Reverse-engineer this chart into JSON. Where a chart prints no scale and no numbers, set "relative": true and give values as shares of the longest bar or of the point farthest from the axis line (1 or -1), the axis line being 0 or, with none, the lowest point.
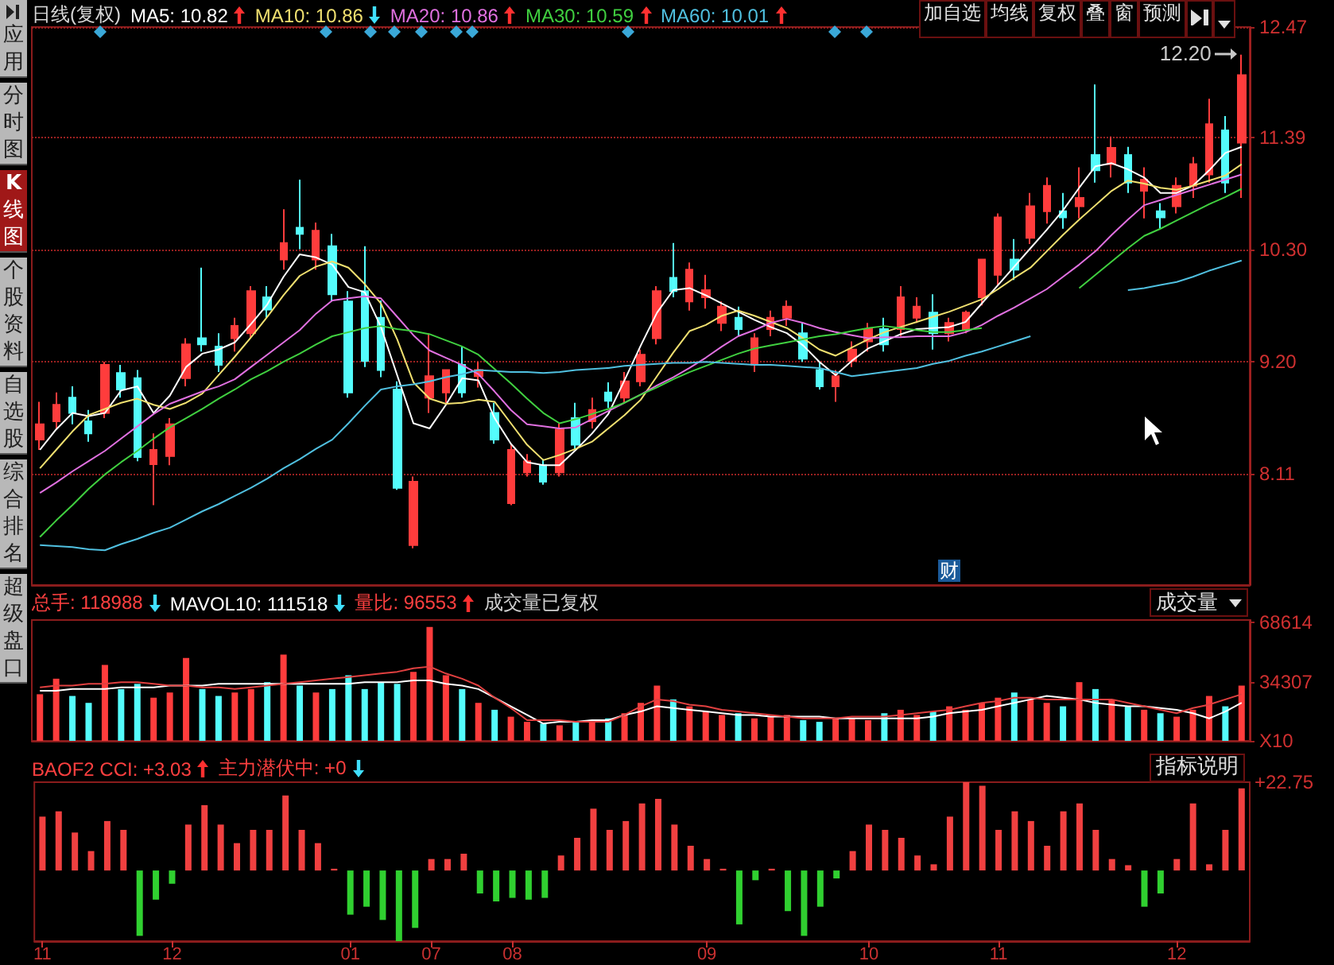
{
  "chart_data": [
    {
      "type": "candlestick",
      "title": "日线(复权)",
      "legend": "top left",
      "grid": "y",
      "tick_labels": "y",
      "ylim": [
        7.02,
        12.47
      ],
      "yticks": [
        8.11,
        {
          "value": 9.2,
          "label": "9.20"
        },
        {
          "value": 10.3,
          "label": "10.30"
        },
        11.39,
        12.47
      ],
      "categories": [
        "11",
        null,
        null,
        null,
        null,
        null,
        null,
        null,
        "12",
        null,
        null,
        null,
        null,
        null,
        null,
        null,
        null,
        null,
        null,
        "01",
        null,
        null,
        null,
        null,
        "07",
        null,
        null,
        null,
        null,
        "08",
        null,
        null,
        null,
        null,
        null,
        null,
        null,
        null,
        null,
        null,
        null,
        "09",
        null,
        null,
        null,
        null,
        null,
        null,
        null,
        null,
        null,
        "10",
        null,
        null,
        null,
        null,
        null,
        null,
        null,
        "11",
        null,
        null,
        null,
        null,
        null,
        null,
        null,
        null,
        null,
        null,
        "12",
        null,
        null,
        null,
        null
      ],
      "annotations": [
        "12.20",
        "财",
        "加自选",
        "均线",
        "复权",
        "叠",
        "窗",
        "预测",
        "应用",
        "分时图",
        "K线图",
        "个股资料",
        "自选股",
        "综合排名",
        "超级盘口"
      ],
      "series": [
        {
          "type": "candlestick",
          "ohlc": [
            [
              8.44,
              8.81,
              8.34,
              8.59
            ],
            [
              8.62,
              8.9,
              8.54,
              8.78
            ],
            [
              8.85,
              8.96,
              8.59,
              8.7
            ],
            [
              8.62,
              8.73,
              8.42,
              8.5
            ],
            [
              8.7,
              9.2,
              8.65,
              9.17
            ],
            [
              9.09,
              9.17,
              8.85,
              8.93
            ],
            [
              9.04,
              9.12,
              8.23,
              8.27
            ],
            [
              8.2,
              8.5,
              7.8,
              8.34
            ],
            [
              8.28,
              8.65,
              8.19,
              8.59
            ],
            [
              9.04,
              9.43,
              8.96,
              9.37
            ],
            [
              9.43,
              10.12,
              9.3,
              9.37
            ],
            [
              9.35,
              9.48,
              9.1,
              9.17
            ],
            [
              9.43,
              9.63,
              9.3,
              9.55
            ],
            [
              9.48,
              9.94,
              9.43,
              9.89
            ],
            [
              9.83,
              9.94,
              9.63,
              9.71
            ],
            [
              10.2,
              10.69,
              10.1,
              10.36
            ],
            [
              10.51,
              10.98,
              10.3,
              10.45
            ],
            [
              10.2,
              10.56,
              10.1,
              10.48
            ],
            [
              10.33,
              10.45,
              9.79,
              9.86
            ],
            [
              9.79,
              9.89,
              8.85,
              8.9
            ],
            [
              9.89,
              10.33,
              9.15,
              9.21
            ],
            [
              9.63,
              9.8,
              9.05,
              9.12
            ],
            [
              8.93,
              9.01,
              7.95,
              7.97
            ],
            [
              7.41,
              8.08,
              7.38,
              8.03
            ],
            [
              8.85,
              9.48,
              8.7,
              9.06
            ],
            [
              8.9,
              9.12,
              8.8,
              9.12
            ],
            [
              9.17,
              9.35,
              8.85,
              8.9
            ],
            [
              9.06,
              9.2,
              8.95,
              9.12
            ],
            [
              8.7,
              8.8,
              8.4,
              8.44
            ],
            [
              7.82,
              8.4,
              7.8,
              8.34
            ],
            [
              8.12,
              8.3,
              8.08,
              8.23
            ],
            [
              8.19,
              8.25,
              8.0,
              8.03
            ],
            [
              8.12,
              8.6,
              8.08,
              8.54
            ],
            [
              8.65,
              8.8,
              8.35,
              8.39
            ],
            [
              8.62,
              8.85,
              8.55,
              8.73
            ],
            [
              8.9,
              9.0,
              8.75,
              8.82
            ],
            [
              8.85,
              9.1,
              8.8,
              9.01
            ],
            [
              9.01,
              9.32,
              8.96,
              9.27
            ],
            [
              9.43,
              9.94,
              9.37,
              9.89
            ],
            [
              10.02,
              10.36,
              9.83,
              9.89
            ],
            [
              9.79,
              10.17,
              9.7,
              10.1
            ],
            [
              9.83,
              10.05,
              9.72,
              9.9
            ],
            [
              9.58,
              9.79,
              9.5,
              9.74
            ],
            [
              9.63,
              9.74,
              9.45,
              9.52
            ],
            [
              9.17,
              9.48,
              9.1,
              9.43
            ],
            [
              9.52,
              9.7,
              9.45,
              9.63
            ],
            [
              9.63,
              9.8,
              9.55,
              9.74
            ],
            [
              9.48,
              9.58,
              9.2,
              9.23
            ],
            [
              9.12,
              9.2,
              8.93,
              8.96
            ],
            [
              8.96,
              9.12,
              8.81,
              9.06
            ],
            [
              9.21,
              9.4,
              9.15,
              9.32
            ],
            [
              9.4,
              9.58,
              9.3,
              9.52
            ],
            [
              9.52,
              9.63,
              9.3,
              9.37
            ],
            [
              9.52,
              9.94,
              9.45,
              9.83
            ],
            [
              9.63,
              9.83,
              9.58,
              9.74
            ],
            [
              9.68,
              9.86,
              9.32,
              9.48
            ],
            [
              9.48,
              9.63,
              9.4,
              9.58
            ],
            [
              9.52,
              9.7,
              9.48,
              9.68
            ],
            [
              9.83,
              10.2,
              9.75,
              10.2
            ],
            [
              10.05,
              10.65,
              9.95,
              10.61
            ],
            [
              10.2,
              10.4,
              10.0,
              10.1
            ],
            [
              10.41,
              10.85,
              10.35,
              10.72
            ],
            [
              10.67,
              11.0,
              10.55,
              10.92
            ],
            [
              10.67,
              10.85,
              10.5,
              10.61
            ],
            [
              10.72,
              11.1,
              10.6,
              10.8
            ],
            [
              11.22,
              11.91,
              10.95,
              11.07
            ],
            [
              11.13,
              11.4,
              11.0,
              11.29
            ],
            [
              11.22,
              11.3,
              10.85,
              10.95
            ],
            [
              10.87,
              11.1,
              10.6,
              10.98
            ],
            [
              10.67,
              10.75,
              10.5,
              10.61
            ],
            [
              10.72,
              11.0,
              10.65,
              10.92
            ],
            [
              10.92,
              11.2,
              10.8,
              11.13
            ],
            [
              11.03,
              11.77,
              10.95,
              11.52
            ],
            [
              11.46,
              11.6,
              10.85,
              10.95
            ],
            [
              11.34,
              12.2,
              10.8,
              12.0
            ]
          ]
        },
        {
          "name": "MA5: 10.82",
          "type": "line",
          "color": "#ffffff",
          "values": [
            8.34,
            8.54,
            8.7,
            8.67,
            8.7,
            8.92,
            8.96,
            8.7,
            8.87,
            9.15,
            9.28,
            9.32,
            9.39,
            9.57,
            9.76,
            10.03,
            10.25,
            10.22,
            10.15,
            9.93,
            9.88,
            9.54,
            9.07,
            8.6,
            8.55,
            8.78,
            9.04,
            9.02,
            8.65,
            8.4,
            8.22,
            8.19,
            8.19,
            8.34,
            8.5,
            8.69,
            9.02,
            9.36,
            9.68,
            9.9,
            9.92,
            9.85,
            9.77,
            9.69,
            9.61,
            9.54,
            9.48,
            9.36,
            9.2,
            9.07,
            9.21,
            9.33,
            9.4,
            9.47,
            9.52,
            9.53,
            9.54,
            9.59,
            9.77,
            9.95,
            10.13,
            10.31,
            10.49,
            10.68,
            10.9,
            11.11,
            11.14,
            11.08,
            11.0,
            10.85,
            10.85,
            10.92,
            11.07,
            11.24,
            11.3
          ]
        },
        {
          "name": "MA10: 10.86",
          "type": "line",
          "color": "#f0e070",
          "values": [
            8.16,
            8.34,
            8.52,
            8.68,
            8.74,
            8.8,
            8.84,
            8.78,
            8.74,
            8.8,
            8.89,
            9.07,
            9.25,
            9.44,
            9.64,
            9.85,
            10.04,
            10.13,
            10.18,
            10.12,
            9.96,
            9.77,
            9.42,
            9.0,
            8.84,
            8.79,
            8.8,
            8.83,
            8.81,
            8.6,
            8.39,
            8.24,
            8.29,
            8.35,
            8.42,
            8.55,
            8.68,
            8.83,
            9.06,
            9.29,
            9.5,
            9.56,
            9.65,
            9.7,
            9.65,
            9.59,
            9.53,
            9.43,
            9.32,
            9.26,
            9.34,
            9.42,
            9.49,
            9.54,
            9.59,
            9.64,
            9.69,
            9.75,
            9.81,
            9.91,
            10.02,
            10.12,
            10.28,
            10.44,
            10.59,
            10.73,
            10.87,
            10.97,
            10.94,
            10.9,
            10.88,
            10.92,
            10.97,
            11.02,
            11.13
          ]
        },
        {
          "name": "MA20: 10.86",
          "type": "line",
          "color": "#e070e0",
          "values": [
            7.92,
            8.02,
            8.13,
            8.23,
            8.33,
            8.45,
            8.57,
            8.69,
            8.79,
            8.85,
            8.91,
            8.96,
            9.03,
            9.15,
            9.27,
            9.39,
            9.51,
            9.67,
            9.8,
            9.82,
            9.84,
            9.82,
            9.64,
            9.46,
            9.31,
            9.24,
            9.17,
            9.08,
            8.91,
            8.73,
            8.59,
            8.57,
            8.55,
            8.56,
            8.64,
            8.72,
            8.8,
            8.88,
            8.97,
            9.05,
            9.14,
            9.24,
            9.35,
            9.45,
            9.51,
            9.58,
            9.62,
            9.58,
            9.53,
            9.49,
            9.46,
            9.43,
            9.44,
            9.44,
            9.45,
            9.45,
            9.45,
            9.49,
            9.56,
            9.65,
            9.73,
            9.82,
            9.91,
            10.03,
            10.15,
            10.28,
            10.44,
            10.59,
            10.73,
            10.78,
            10.83,
            10.88,
            10.93,
            10.98,
            11.03
          ]
        },
        {
          "name": "MA30: 10.59",
          "type": "line",
          "color": "#40d040",
          "values": [
            7.49,
            7.65,
            7.8,
            7.96,
            8.1,
            8.22,
            8.33,
            8.45,
            8.56,
            8.65,
            8.74,
            8.84,
            8.93,
            9.03,
            9.11,
            9.2,
            9.28,
            9.37,
            9.45,
            9.49,
            9.53,
            9.55,
            9.52,
            9.5,
            9.47,
            9.41,
            9.35,
            9.27,
            9.13,
            8.99,
            8.84,
            8.7,
            8.6,
            8.64,
            8.69,
            8.74,
            8.8,
            8.88,
            8.95,
            9.03,
            9.1,
            9.16,
            9.22,
            9.28,
            9.33,
            9.36,
            9.39,
            9.42,
            9.45,
            9.47,
            9.5,
            9.53,
            9.55,
            9.53,
            9.51,
            9.49,
            9.49,
            9.51,
            9.53,
            null,
            null,
            null,
            null,
            null,
            9.92,
            10.05,
            10.18,
            10.31,
            10.43,
            10.5,
            10.58,
            10.66,
            10.74,
            10.81,
            10.89
          ]
        },
        {
          "name": "MA60: 10.01",
          "type": "line",
          "color": "#50c0e0",
          "values": [
            7.41,
            7.4,
            7.39,
            7.37,
            7.36,
            7.42,
            7.47,
            7.53,
            7.58,
            7.66,
            7.74,
            7.81,
            7.89,
            7.97,
            8.06,
            8.16,
            8.25,
            8.35,
            8.44,
            8.6,
            8.77,
            8.93,
            8.96,
            8.98,
            9.01,
            9.05,
            9.08,
            9.12,
            9.11,
            9.1,
            9.1,
            9.09,
            9.1,
            9.12,
            9.13,
            9.14,
            9.16,
            9.17,
            9.18,
            9.19,
            9.19,
            9.2,
            9.19,
            9.18,
            9.17,
            9.17,
            9.16,
            9.15,
            9.14,
            9.1,
            9.06,
            9.08,
            9.1,
            9.12,
            9.14,
            9.18,
            9.21,
            9.26,
            9.3,
            9.35,
            9.4,
            9.45,
            null,
            null,
            null,
            null,
            null,
            9.9,
            9.92,
            9.95,
            9.98,
            10.03,
            10.09,
            10.14,
            10.19
          ]
        }
      ]
    },
    {
      "type": "bar",
      "legend": "top left",
      "tick_labels": "y",
      "ylim": [
        0,
        70000
      ],
      "yticks": [
        {
          "value": 0,
          "label": "X10"
        },
        34307,
        68614
      ],
      "categories": [
        "11",
        null,
        null,
        null,
        null,
        null,
        null,
        null,
        "12",
        null,
        null,
        null,
        null,
        null,
        null,
        null,
        null,
        null,
        null,
        "01",
        null,
        null,
        null,
        null,
        "07",
        null,
        null,
        null,
        null,
        "08",
        null,
        null,
        null,
        null,
        null,
        null,
        null,
        null,
        null,
        null,
        null,
        "09",
        null,
        null,
        null,
        null,
        null,
        null,
        null,
        null,
        null,
        "10",
        null,
        null,
        null,
        null,
        null,
        null,
        null,
        "11",
        null,
        null,
        null,
        null,
        null,
        null,
        null,
        null,
        null,
        null,
        "12",
        null,
        null,
        null,
        null
      ],
      "annotations": [
        "总手: 118988",
        "量比: 96553",
        "成交量已复权",
        "成交量"
      ],
      "series": [
        {
          "type": "bar",
          "values": [
            27000,
            36000,
            26000,
            22000,
            44000,
            30000,
            33000,
            25000,
            28000,
            48000,
            30000,
            26000,
            28000,
            30000,
            34000,
            50000,
            32000,
            28000,
            30000,
            38000,
            30000,
            34000,
            33000,
            40000,
            66000,
            38000,
            30000,
            22000,
            18000,
            14000,
            11000,
            10000,
            9000,
            11000,
            12000,
            13000,
            16000,
            22000,
            32000,
            24000,
            20000,
            17000,
            15000,
            16000,
            13000,
            14000,
            15000,
            12000,
            11000,
            13000,
            13000,
            12000,
            16000,
            18000,
            15000,
            17000,
            20000,
            18000,
            22000,
            25000,
            28000,
            24000,
            22000,
            20000,
            34000,
            30000,
            24000,
            20000,
            18000,
            16000,
            14000,
            18000,
            26000,
            20000,
            32000
          ],
          "colors": [
            "#ff3c3c",
            "#ff3c3c",
            "#54fcfc",
            "#54fcfc",
            "#ff3c3c",
            "#54fcfc",
            "#54fcfc",
            "#ff3c3c",
            "#ff3c3c",
            "#ff3c3c",
            "#54fcfc",
            "#54fcfc",
            "#ff3c3c",
            "#ff3c3c",
            "#54fcfc",
            "#ff3c3c",
            "#54fcfc",
            "#ff3c3c",
            "#54fcfc",
            "#54fcfc",
            "#54fcfc",
            "#54fcfc",
            "#54fcfc",
            "#ff3c3c",
            "#ff3c3c",
            "#ff3c3c",
            "#54fcfc",
            "#ff3c3c",
            "#54fcfc",
            "#ff3c3c",
            "#ff3c3c",
            "#54fcfc",
            "#ff3c3c",
            "#54fcfc",
            "#ff3c3c",
            "#54fcfc",
            "#ff3c3c",
            "#ff3c3c",
            "#ff3c3c",
            "#54fcfc",
            "#ff3c3c",
            "#ff3c3c",
            "#ff3c3c",
            "#54fcfc",
            "#ff3c3c",
            "#ff3c3c",
            "#ff3c3c",
            "#54fcfc",
            "#54fcfc",
            "#ff3c3c",
            "#ff3c3c",
            "#ff3c3c",
            "#54fcfc",
            "#ff3c3c",
            "#ff3c3c",
            "#54fcfc",
            "#ff3c3c",
            "#ff3c3c",
            "#ff3c3c",
            "#ff3c3c",
            "#54fcfc",
            "#ff3c3c",
            "#ff3c3c",
            "#54fcfc",
            "#ff3c3c",
            "#54fcfc",
            "#ff3c3c",
            "#54fcfc",
            "#ff3c3c",
            "#54fcfc",
            "#ff3c3c",
            "#ff3c3c",
            "#ff3c3c",
            "#54fcfc",
            "#ff3c3c"
          ]
        },
        {
          "name": "MAVOL10: 111518",
          "type": "line",
          "color": "#ffffff",
          "values": [
            29000,
            29000,
            30000,
            30000,
            30000,
            31000,
            31000,
            31000,
            32000,
            32000,
            32000,
            33000,
            33000,
            33000,
            33000,
            33000,
            33000,
            33000,
            33000,
            33000,
            34000,
            34000,
            34000,
            35000,
            35000,
            33000,
            32000,
            30000,
            25000,
            20000,
            15000,
            10000,
            11000,
            11000,
            12000,
            12000,
            15000,
            17000,
            20000,
            19000,
            18000,
            17000,
            16000,
            15000,
            15000,
            14000,
            14000,
            14000,
            14000,
            13000,
            13000,
            13000,
            13000,
            13000,
            13000,
            14000,
            16000,
            17000,
            18000,
            20000,
            22000,
            24000,
            26000,
            25000,
            24000,
            22000,
            21000,
            20000,
            20000,
            19000,
            18000,
            16000,
            13000,
            17000,
            22000
          ]
        },
        {
          "type": "line",
          "color": "#e04040",
          "values": [
            31000,
            32000,
            32000,
            33000,
            33000,
            34000,
            34000,
            33000,
            32000,
            32000,
            31000,
            31000,
            30000,
            31000,
            32000,
            33000,
            34000,
            35000,
            36000,
            37000,
            38000,
            39000,
            40000,
            42000,
            43000,
            39000,
            36000,
            32000,
            25000,
            19000,
            12000,
            12000,
            12000,
            11000,
            11000,
            11000,
            15000,
            20000,
            24000,
            23000,
            21000,
            20000,
            18000,
            17000,
            16000,
            15000,
            14000,
            13000,
            13000,
            13000,
            14000,
            14000,
            14000,
            15000,
            16000,
            17000,
            18000,
            20000,
            22000,
            23000,
            25000,
            25000,
            24000,
            24000,
            24000,
            24000,
            24000,
            22000,
            20000,
            18000,
            16000,
            19000,
            21000,
            24000,
            27000
          ]
        }
      ]
    },
    {
      "type": "bar",
      "relative": true,
      "tick_labels": "x",
      "categories": [
        "11",
        null,
        null,
        null,
        null,
        null,
        null,
        null,
        "12",
        null,
        null,
        null,
        null,
        null,
        null,
        null,
        null,
        null,
        null,
        "01",
        null,
        null,
        null,
        null,
        "07",
        null,
        null,
        null,
        null,
        "08",
        null,
        null,
        null,
        null,
        null,
        null,
        null,
        null,
        null,
        null,
        null,
        "09",
        null,
        null,
        null,
        null,
        null,
        null,
        null,
        null,
        null,
        "10",
        null,
        null,
        null,
        null,
        null,
        null,
        null,
        "11",
        null,
        null,
        null,
        null,
        null,
        null,
        null,
        null,
        null,
        null,
        "12",
        null,
        null,
        null,
        null
      ],
      "annotations": [
        "BAOF2 CCI: +3.03",
        "主力潜伏中: +0",
        "指标说明",
        "+22.75"
      ],
      "values": [
        0.61,
        0.67,
        0.43,
        0.22,
        0.56,
        0.46,
        -0.74,
        -0.33,
        -0.15,
        0.52,
        0.74,
        0.52,
        0.31,
        0.46,
        0.46,
        0.85,
        0.46,
        0.31,
        0.02,
        -0.5,
        -0.41,
        -0.56,
        -0.8,
        -0.65,
        0.13,
        0.13,
        0.19,
        -0.26,
        -0.35,
        -0.31,
        -0.33,
        -0.31,
        0.17,
        0.37,
        0.7,
        0.46,
        0.56,
        0.76,
        0.81,
        0.52,
        0.28,
        0.13,
        0.02,
        -0.61,
        -0.11,
        0.02,
        -0.46,
        -0.74,
        -0.41,
        -0.09,
        0.22,
        0.52,
        0.46,
        0.37,
        0.17,
        0.07,
        0.61,
        1,
        0.96,
        0.46,
        0.67,
        0.56,
        0.28,
        0.67,
        0.76,
        0.46,
        0.13,
        0.06,
        -0.41,
        -0.26,
        0.13,
        0.76,
        0.07,
        0.46,
        0.93
      ],
      "colors": [
        "#f04040",
        "#f04040",
        "#f04040",
        "#f04040",
        "#f04040",
        "#f04040",
        "#30d030",
        "#30d030",
        "#30d030",
        "#f04040",
        "#f04040",
        "#f04040",
        "#f04040",
        "#f04040",
        "#f04040",
        "#f04040",
        "#f04040",
        "#f04040",
        "#f04040",
        "#30d030",
        "#30d030",
        "#30d030",
        "#30d030",
        "#30d030",
        "#f04040",
        "#f04040",
        "#f04040",
        "#30d030",
        "#30d030",
        "#30d030",
        "#30d030",
        "#30d030",
        "#f04040",
        "#f04040",
        "#f04040",
        "#f04040",
        "#f04040",
        "#f04040",
        "#f04040",
        "#f04040",
        "#f04040",
        "#f04040",
        "#f04040",
        "#30d030",
        "#30d030",
        "#f04040",
        "#30d030",
        "#30d030",
        "#30d030",
        "#30d030",
        "#f04040",
        "#f04040",
        "#f04040",
        "#f04040",
        "#f04040",
        "#f04040",
        "#f04040",
        "#f04040",
        "#f04040",
        "#f04040",
        "#f04040",
        "#f04040",
        "#f04040",
        "#f04040",
        "#f04040",
        "#f04040",
        "#f04040",
        "#f04040",
        "#30d030",
        "#30d030",
        "#f04040",
        "#f04040",
        "#f04040",
        "#f04040",
        "#f04040"
      ]
    }
  ]
}
